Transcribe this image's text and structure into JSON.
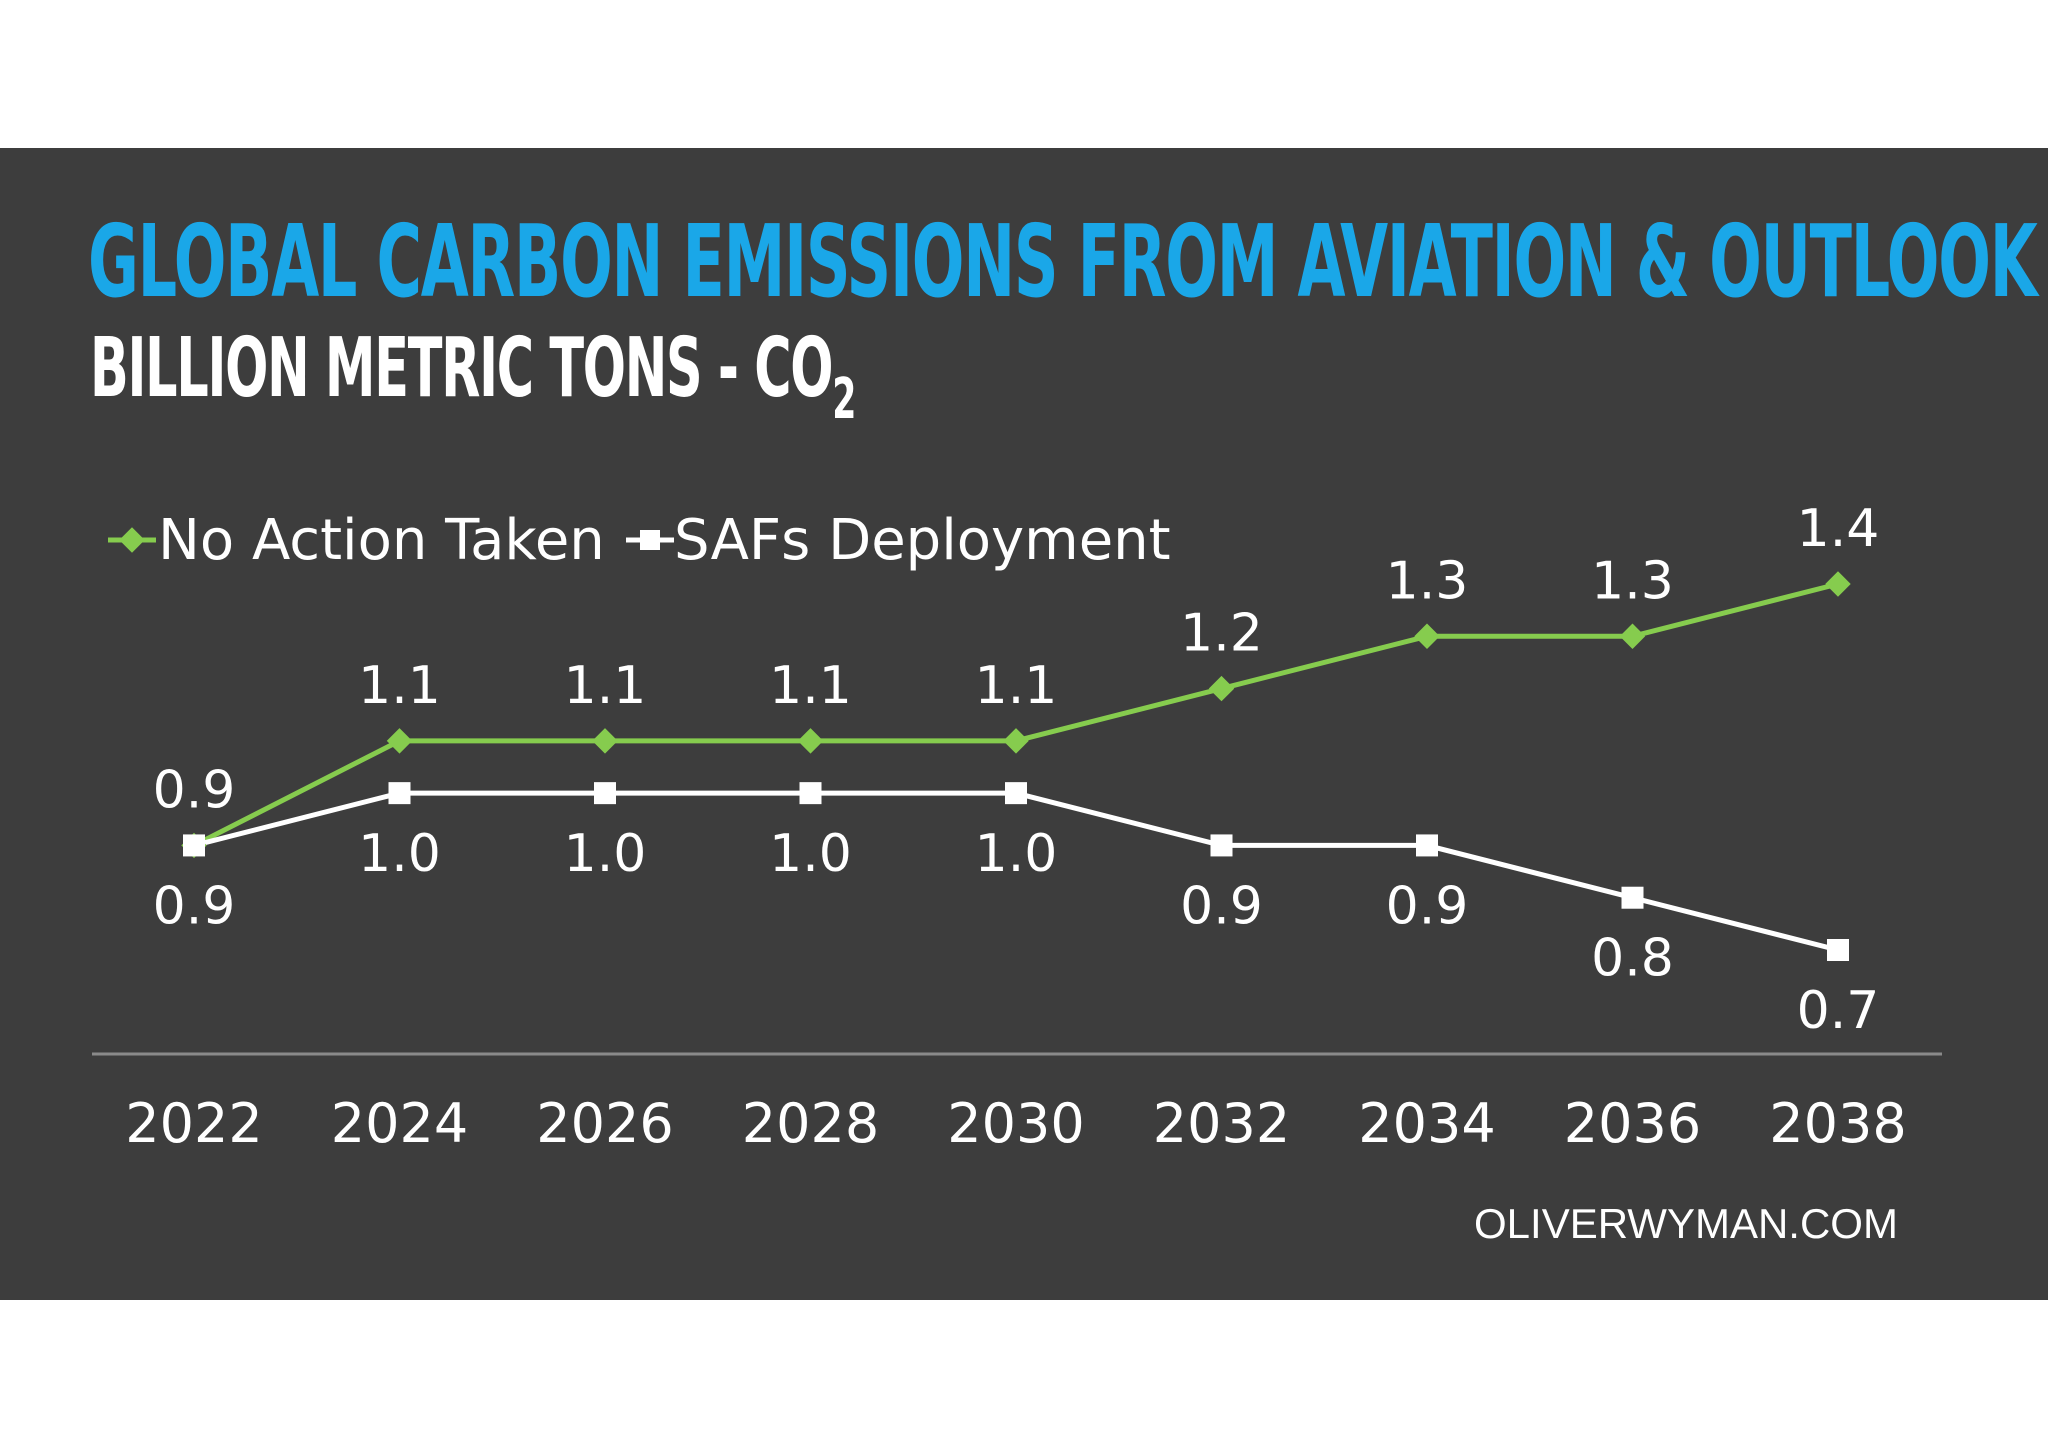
{
  "colors": {
    "background": "#3d3d3d",
    "title": "#1aa7e8",
    "subtitle": "#ffffff",
    "series_no_action": "#86cc4e",
    "series_saf": "#ffffff",
    "axis_line": "#8a8a8a"
  },
  "header": {
    "title": "GLOBAL CARBON EMISSIONS FROM AVIATION & OUTLOOK",
    "subtitle_main": "BILLION METRIC TONS - CO",
    "subtitle_sub": "2"
  },
  "footer": {
    "source": "OLIVERWYMAN.COM"
  },
  "chart_data": {
    "type": "line",
    "title": "GLOBAL CARBON EMISSIONS FROM AVIATION & OUTLOOK",
    "subtitle": "BILLION METRIC TONS - CO2",
    "xlabel": "",
    "ylabel": "",
    "categories": [
      "2022",
      "2024",
      "2026",
      "2028",
      "2030",
      "2032",
      "2034",
      "2036",
      "2038"
    ],
    "series": [
      {
        "name": "No Action Taken",
        "marker": "diamond",
        "values": [
          0.9,
          1.1,
          1.1,
          1.1,
          1.1,
          1.2,
          1.3,
          1.3,
          1.4
        ],
        "labels": [
          "0.9",
          "1.1",
          "1.1",
          "1.1",
          "1.1",
          "1.2",
          "1.3",
          "1.3",
          "1.4"
        ],
        "label_position": "above"
      },
      {
        "name": "SAFs Deployment",
        "marker": "square",
        "values": [
          0.9,
          1.0,
          1.0,
          1.0,
          1.0,
          0.9,
          0.9,
          0.8,
          0.7
        ],
        "labels": [
          "0.9",
          "1.0",
          "1.0",
          "1.0",
          "1.0",
          "0.9",
          "0.9",
          "0.8",
          "0.7"
        ],
        "label_position": "below"
      }
    ],
    "ylim": [
      0.7,
      1.4
    ],
    "grid": false,
    "legend_position": "top-left"
  }
}
